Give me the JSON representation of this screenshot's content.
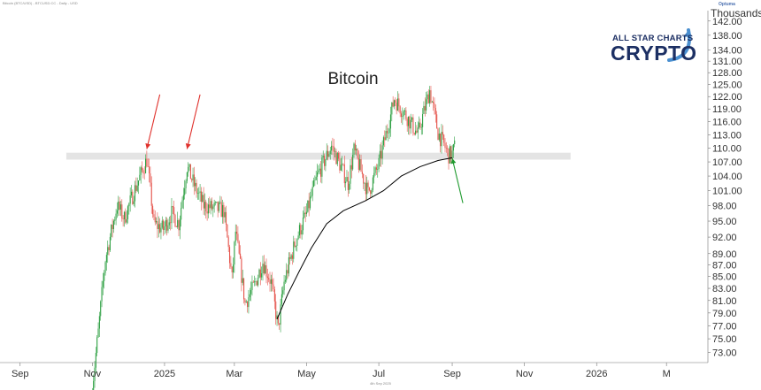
{
  "header": {
    "instrument": "Bitcoin (BTC/USD) - BTCUSD.CC - Daily - USD",
    "units": "Thousands",
    "vendor": "Optuma",
    "footer_date": "4th Sep 2025"
  },
  "logo": {
    "line1": "ALL STAR CHARTS",
    "line2": "CRYPTO",
    "color": "#1c2f63",
    "accent": "#4a8fd0"
  },
  "chart_data": {
    "type": "candlestick",
    "title": "Bitcoin",
    "xlabel": "",
    "ylabel": "",
    "y_scale": "log",
    "ylim": [
      71.5,
      145
    ],
    "xlim": [
      "2024-08-15",
      "2026-04-05"
    ],
    "x_ticks": [
      {
        "date": "2024-09-01",
        "label": "Sep"
      },
      {
        "date": "2024-11-01",
        "label": "Nov"
      },
      {
        "date": "2025-01-01",
        "label": "2025"
      },
      {
        "date": "2025-03-01",
        "label": "Mar"
      },
      {
        "date": "2025-05-01",
        "label": "May"
      },
      {
        "date": "2025-07-01",
        "label": "Jul"
      },
      {
        "date": "2025-09-01",
        "label": "Sep"
      },
      {
        "date": "2025-11-01",
        "label": "Nov"
      },
      {
        "date": "2026-01-01",
        "label": "2026"
      },
      {
        "date": "2026-03-01",
        "label": "M"
      }
    ],
    "y_ticks": [
      "73.00",
      "75.00",
      "77.00",
      "79.00",
      "81.00",
      "83.00",
      "85.00",
      "87.00",
      "89.00",
      "92.00",
      "95.00",
      "98.00",
      "101.00",
      "104.00",
      "107.00",
      "110.00",
      "113.00",
      "116.00",
      "119.00",
      "122.00",
      "125.00",
      "128.00",
      "131.00",
      "134.00",
      "138.00",
      "142.00"
    ],
    "grid": false,
    "colors": {
      "up": "#2ea043",
      "down": "#e5534b",
      "ma": "#000000",
      "zone": "#e4e4e4",
      "arrow_red": "#e0312c",
      "arrow_green": "#1e9a2e"
    },
    "price_anchors": [
      {
        "date": "2024-11-01",
        "close": 68.0
      },
      {
        "date": "2024-11-06",
        "close": 76.0
      },
      {
        "date": "2024-11-12",
        "close": 88.0
      },
      {
        "date": "2024-11-22",
        "close": 98.0
      },
      {
        "date": "2024-11-28",
        "close": 95.5
      },
      {
        "date": "2024-12-05",
        "close": 100.0
      },
      {
        "date": "2024-12-17",
        "close": 107.5
      },
      {
        "date": "2024-12-23",
        "close": 94.5
      },
      {
        "date": "2024-12-31",
        "close": 93.5
      },
      {
        "date": "2025-01-07",
        "close": 96.5
      },
      {
        "date": "2025-01-13",
        "close": 94.5
      },
      {
        "date": "2025-01-20",
        "close": 106.0
      },
      {
        "date": "2025-01-27",
        "close": 101.5
      },
      {
        "date": "2025-02-03",
        "close": 98.0
      },
      {
        "date": "2025-02-20",
        "close": 97.0
      },
      {
        "date": "2025-02-27",
        "close": 84.5
      },
      {
        "date": "2025-03-02",
        "close": 93.0
      },
      {
        "date": "2025-03-10",
        "close": 80.5
      },
      {
        "date": "2025-03-18",
        "close": 83.5
      },
      {
        "date": "2025-03-25",
        "close": 87.5
      },
      {
        "date": "2025-04-01",
        "close": 84.0
      },
      {
        "date": "2025-04-07",
        "close": 76.5
      },
      {
        "date": "2025-04-12",
        "close": 84.0
      },
      {
        "date": "2025-04-22",
        "close": 91.5
      },
      {
        "date": "2025-05-01",
        "close": 96.5
      },
      {
        "date": "2025-05-10",
        "close": 104.0
      },
      {
        "date": "2025-05-22",
        "close": 110.5
      },
      {
        "date": "2025-06-05",
        "close": 102.5
      },
      {
        "date": "2025-06-10",
        "close": 109.5
      },
      {
        "date": "2025-06-22",
        "close": 100.5
      },
      {
        "date": "2025-07-01",
        "close": 106.5
      },
      {
        "date": "2025-07-11",
        "close": 117.5
      },
      {
        "date": "2025-07-14",
        "close": 121.5
      },
      {
        "date": "2025-07-25",
        "close": 117.0
      },
      {
        "date": "2025-08-03",
        "close": 113.0
      },
      {
        "date": "2025-08-13",
        "close": 123.5
      },
      {
        "date": "2025-08-20",
        "close": 113.5
      },
      {
        "date": "2025-08-29",
        "close": 108.5
      },
      {
        "date": "2025-09-01",
        "close": 108.8
      },
      {
        "date": "2025-09-04",
        "close": 111.0
      }
    ],
    "moving_average": [
      {
        "date": "2025-04-06",
        "value": 78.0
      },
      {
        "date": "2025-04-15",
        "value": 82.0
      },
      {
        "date": "2025-04-25",
        "value": 86.0
      },
      {
        "date": "2025-05-05",
        "value": 90.0
      },
      {
        "date": "2025-05-18",
        "value": 94.5
      },
      {
        "date": "2025-06-01",
        "value": 97.0
      },
      {
        "date": "2025-06-20",
        "value": 99.0
      },
      {
        "date": "2025-07-05",
        "value": 101.0
      },
      {
        "date": "2025-07-20",
        "value": 104.0
      },
      {
        "date": "2025-08-05",
        "value": 106.0
      },
      {
        "date": "2025-08-20",
        "value": 107.3
      },
      {
        "date": "2025-09-01",
        "value": 107.9
      }
    ],
    "resistance_zone": {
      "x_from": "2024-10-10",
      "x_to": "2025-12-10",
      "y_from": 107.5,
      "y_to": 109.0
    },
    "annotations": [
      {
        "type": "arrow",
        "color": "red",
        "from": {
          "date": "2024-12-28",
          "y": 122.5
        },
        "to": {
          "date": "2024-12-17",
          "y": 109.8
        }
      },
      {
        "type": "arrow",
        "color": "red",
        "from": {
          "date": "2025-01-31",
          "y": 122.5
        },
        "to": {
          "date": "2025-01-20",
          "y": 109.8
        }
      },
      {
        "type": "arrow",
        "color": "green",
        "from": {
          "date": "2025-09-10",
          "y": 98.5
        },
        "to": {
          "date": "2025-09-01",
          "y": 107.8
        }
      }
    ]
  }
}
